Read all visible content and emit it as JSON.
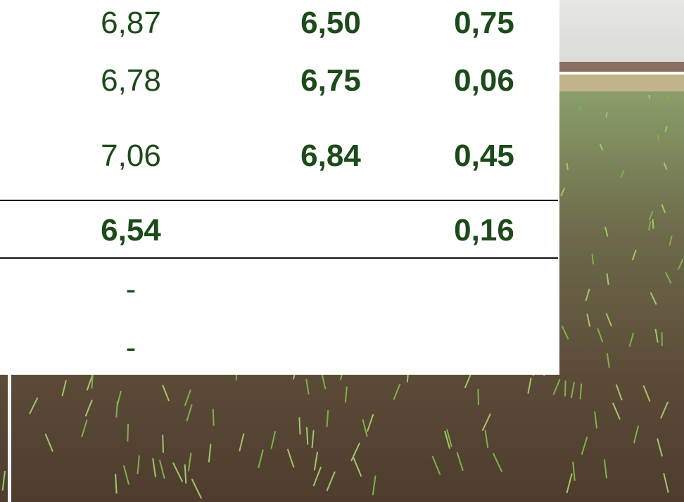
{
  "table": {
    "rows": [
      [
        "6,87",
        "6,50",
        "0,75"
      ],
      [
        "6,78",
        "6,75",
        "0,06"
      ],
      [
        "7,06",
        "6,84",
        "0,45"
      ]
    ],
    "total": {
      "first": "6,54",
      "last": "0,16"
    },
    "notes": [
      "-",
      "-"
    ]
  }
}
